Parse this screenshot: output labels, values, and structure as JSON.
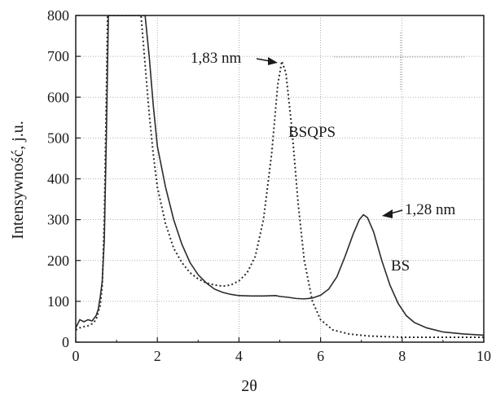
{
  "chart_data": {
    "type": "line",
    "xlabel": "2θ",
    "ylabel": "Intensywność, j.u.",
    "xlim": [
      0,
      10
    ],
    "ylim": [
      0,
      800
    ],
    "xticks": [
      "0",
      "2",
      "4",
      "6",
      "8",
      "10"
    ],
    "yticks": [
      "0",
      "100",
      "200",
      "300",
      "400",
      "500",
      "600",
      "700",
      "800"
    ],
    "grid": true,
    "colors": {
      "line": "#2b2b2b",
      "grid": "#9a9a9a",
      "axis": "#1a1a1a"
    },
    "series": [
      {
        "label": "BS",
        "style": "solid",
        "points": [
          [
            0.0,
            35
          ],
          [
            0.05,
            45
          ],
          [
            0.1,
            55
          ],
          [
            0.2,
            50
          ],
          [
            0.3,
            55
          ],
          [
            0.4,
            52
          ],
          [
            0.5,
            65
          ],
          [
            0.55,
            80
          ],
          [
            0.6,
            110
          ],
          [
            0.65,
            150
          ],
          [
            0.7,
            250
          ],
          [
            0.75,
            500
          ],
          [
            0.8,
            800
          ],
          [
            1.7,
            800
          ],
          [
            1.8,
            700
          ],
          [
            1.9,
            580
          ],
          [
            2.0,
            480
          ],
          [
            2.2,
            380
          ],
          [
            2.4,
            300
          ],
          [
            2.6,
            240
          ],
          [
            2.8,
            195
          ],
          [
            3.0,
            165
          ],
          [
            3.2,
            145
          ],
          [
            3.4,
            130
          ],
          [
            3.6,
            122
          ],
          [
            3.8,
            117
          ],
          [
            4.0,
            114
          ],
          [
            4.3,
            113
          ],
          [
            4.6,
            113
          ],
          [
            4.9,
            114
          ],
          [
            5.0,
            112
          ],
          [
            5.2,
            110
          ],
          [
            5.4,
            107
          ],
          [
            5.6,
            106
          ],
          [
            5.8,
            108
          ],
          [
            6.0,
            115
          ],
          [
            6.2,
            130
          ],
          [
            6.4,
            160
          ],
          [
            6.6,
            210
          ],
          [
            6.8,
            265
          ],
          [
            6.95,
            300
          ],
          [
            7.05,
            312
          ],
          [
            7.15,
            305
          ],
          [
            7.3,
            270
          ],
          [
            7.5,
            200
          ],
          [
            7.7,
            140
          ],
          [
            7.9,
            95
          ],
          [
            8.1,
            65
          ],
          [
            8.3,
            48
          ],
          [
            8.6,
            35
          ],
          [
            9.0,
            25
          ],
          [
            9.5,
            20
          ],
          [
            10.0,
            17
          ]
        ]
      },
      {
        "label": "BSQPS",
        "style": "dotted",
        "points": [
          [
            0.0,
            30
          ],
          [
            0.1,
            35
          ],
          [
            0.2,
            38
          ],
          [
            0.3,
            40
          ],
          [
            0.4,
            45
          ],
          [
            0.5,
            55
          ],
          [
            0.6,
            90
          ],
          [
            0.65,
            140
          ],
          [
            0.7,
            300
          ],
          [
            0.75,
            600
          ],
          [
            0.78,
            800
          ],
          [
            1.6,
            800
          ],
          [
            1.7,
            680
          ],
          [
            1.8,
            560
          ],
          [
            1.9,
            460
          ],
          [
            2.0,
            380
          ],
          [
            2.2,
            290
          ],
          [
            2.4,
            230
          ],
          [
            2.6,
            195
          ],
          [
            2.8,
            170
          ],
          [
            3.0,
            155
          ],
          [
            3.2,
            145
          ],
          [
            3.4,
            140
          ],
          [
            3.6,
            137
          ],
          [
            3.8,
            140
          ],
          [
            4.0,
            150
          ],
          [
            4.2,
            170
          ],
          [
            4.4,
            210
          ],
          [
            4.6,
            300
          ],
          [
            4.8,
            460
          ],
          [
            4.95,
            630
          ],
          [
            5.05,
            688
          ],
          [
            5.15,
            660
          ],
          [
            5.3,
            520
          ],
          [
            5.45,
            340
          ],
          [
            5.6,
            200
          ],
          [
            5.8,
            100
          ],
          [
            6.0,
            55
          ],
          [
            6.3,
            30
          ],
          [
            6.7,
            20
          ],
          [
            7.2,
            15
          ],
          [
            8.0,
            12
          ],
          [
            9.0,
            12
          ],
          [
            10.0,
            12
          ]
        ]
      }
    ],
    "annotations": {
      "bsqps_peak_label": "1,83 nm",
      "bsqps_curve_label": "BSQPS",
      "bs_peak_label": "1,28 nm",
      "bs_curve_label": "BS"
    }
  }
}
